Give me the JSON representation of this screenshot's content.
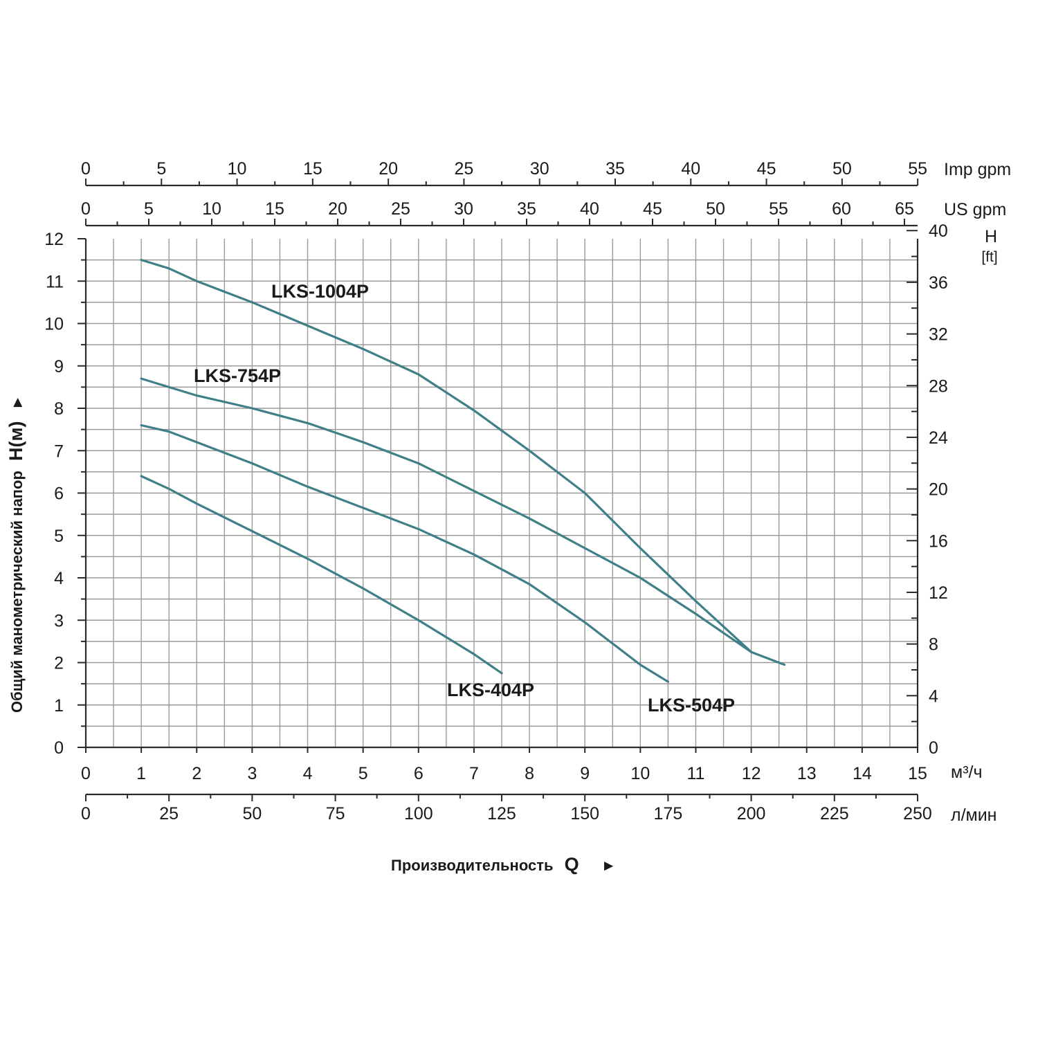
{
  "chart_data": {
    "type": "line",
    "title": "",
    "xlabel": "Производительность",
    "xlabel_symbol": "Q",
    "ylabel": "Общий манометрический напор",
    "ylabel_symbol": "H(м)",
    "arrow_glyph": "►",
    "xlim": [
      0,
      15
    ],
    "ylim": [
      0,
      12
    ],
    "grid": true,
    "curve_color": "#3f7f88",
    "axes": {
      "imp_gpm": {
        "unit": "Imp gpm",
        "ticks": [
          "0",
          "5",
          "10",
          "15",
          "20",
          "25",
          "30",
          "35",
          "40",
          "45",
          "50",
          "55"
        ],
        "per_m3h": 3.6662
      },
      "us_gpm": {
        "unit": "US gpm",
        "ticks": [
          "0",
          "5",
          "10",
          "15",
          "20",
          "25",
          "30",
          "35",
          "40",
          "45",
          "50",
          "55",
          "60",
          "65"
        ],
        "per_m3h": 4.4029
      },
      "m3h": {
        "unit": "м³/ч",
        "ticks": [
          "0",
          "1",
          "2",
          "3",
          "4",
          "5",
          "6",
          "7",
          "8",
          "9",
          "10",
          "11",
          "12",
          "13",
          "14",
          "15"
        ]
      },
      "lmin": {
        "unit": "л/мин",
        "ticks": [
          "0",
          "25",
          "50",
          "75",
          "100",
          "125",
          "150",
          "175",
          "200",
          "225",
          "250"
        ],
        "per_m3h": 16.6667
      },
      "h_m": {
        "ticks": [
          "0",
          "1",
          "2",
          "3",
          "4",
          "5",
          "6",
          "7",
          "8",
          "9",
          "10",
          "11",
          "12"
        ]
      },
      "h_ft": {
        "unit_line1": "H",
        "unit_line2": "[ft]",
        "ticks": [
          "0",
          "4",
          "8",
          "12",
          "16",
          "20",
          "24",
          "28",
          "32",
          "36",
          "40"
        ],
        "per_m": 3.2808
      }
    },
    "series": [
      {
        "name": "LKS-1004P",
        "x": [
          1,
          1.5,
          2,
          3,
          4,
          5,
          6,
          7,
          8,
          9,
          10,
          11,
          12,
          12.6
        ],
        "y": [
          11.5,
          11.3,
          11.0,
          10.5,
          9.95,
          9.4,
          8.8,
          7.95,
          7.0,
          6.0,
          4.7,
          3.45,
          2.25,
          1.95
        ]
      },
      {
        "name": "LKS-754P",
        "x": [
          1,
          1.5,
          2,
          3,
          4,
          5,
          6,
          7,
          8,
          9,
          10,
          11,
          12
        ],
        "y": [
          8.7,
          8.5,
          8.3,
          8.0,
          7.65,
          7.2,
          6.7,
          6.05,
          5.4,
          4.7,
          4.0,
          3.15,
          2.25
        ]
      },
      {
        "name": "LKS-504P",
        "x": [
          1,
          1.5,
          2,
          3,
          4,
          5,
          6,
          7,
          8,
          9,
          10,
          10.5
        ],
        "y": [
          7.6,
          7.45,
          7.2,
          6.7,
          6.15,
          5.65,
          5.15,
          4.55,
          3.85,
          2.95,
          1.95,
          1.55
        ]
      },
      {
        "name": "LKS-404P",
        "x": [
          1,
          1.5,
          2,
          3,
          4,
          5,
          6,
          7,
          7.5
        ],
        "y": [
          6.4,
          6.1,
          5.75,
          5.1,
          4.45,
          3.75,
          3.0,
          2.2,
          1.75
        ]
      }
    ]
  }
}
